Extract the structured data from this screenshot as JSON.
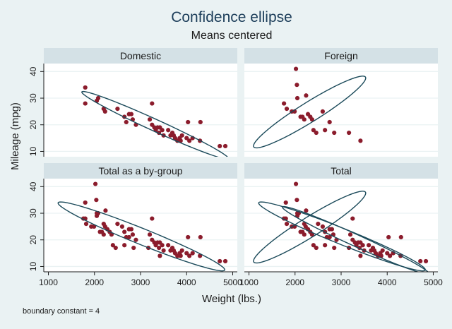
{
  "chart_data": {
    "type": "scatter",
    "title": "Confidence ellipse",
    "subtitle": "Means centered",
    "xlabel": "Weight (lbs.)",
    "ylabel": "Mileage (mpg)",
    "note": "boundary constant = 4",
    "xlim": [
      900,
      5100
    ],
    "ylim": [
      8,
      43
    ],
    "xticks": [
      1000,
      2000,
      3000,
      4000,
      5000
    ],
    "xtick_labels": [
      "1000",
      "2000",
      "3000",
      "4000",
      "5000"
    ],
    "yticks": [
      10,
      20,
      30,
      40
    ],
    "ytick_labels": [
      "10",
      "20",
      "30",
      "40"
    ],
    "grid": true,
    "colors": {
      "background": "#eaf2f3",
      "panel": "#ffffff",
      "strip": "#d4e1e6",
      "grid": "#eaf2f3",
      "marker": "#8b1c2c",
      "ellipse": "#1b4a5a",
      "text": "#1b1b1b",
      "title": "#1d3e5a"
    },
    "panels": [
      {
        "name": "Domestic",
        "ellipses": [
          {
            "cx": 3318,
            "cy": 19.8,
            "rx": 1750,
            "ry": 2.2,
            "angle_deg": 24.5
          }
        ],
        "points": [
          [
            1800,
            34
          ],
          [
            1800,
            28
          ],
          [
            2050,
            29
          ],
          [
            2080,
            30
          ],
          [
            2200,
            26
          ],
          [
            2230,
            25
          ],
          [
            2500,
            26
          ],
          [
            2650,
            23
          ],
          [
            2690,
            21
          ],
          [
            2750,
            24
          ],
          [
            2800,
            24
          ],
          [
            2830,
            22
          ],
          [
            2900,
            20
          ],
          [
            3200,
            22
          ],
          [
            3250,
            28
          ],
          [
            3250,
            20
          ],
          [
            3300,
            19
          ],
          [
            3330,
            18
          ],
          [
            3370,
            19
          ],
          [
            3400,
            17
          ],
          [
            3420,
            19
          ],
          [
            3470,
            18
          ],
          [
            3500,
            16
          ],
          [
            3600,
            18
          ],
          [
            3650,
            16
          ],
          [
            3690,
            17
          ],
          [
            3720,
            16
          ],
          [
            3750,
            15
          ],
          [
            3800,
            14
          ],
          [
            3850,
            15
          ],
          [
            3870,
            14
          ],
          [
            3900,
            16
          ],
          [
            4000,
            15
          ],
          [
            4030,
            21
          ],
          [
            4060,
            14
          ],
          [
            4130,
            15
          ],
          [
            4290,
            14
          ],
          [
            4300,
            21
          ],
          [
            4720,
            12
          ],
          [
            4840,
            12
          ]
        ]
      },
      {
        "name": "Foreign",
        "ellipses": [
          {
            "cx": 2316,
            "cy": 24.8,
            "rx": 1430,
            "ry": 3.7,
            "angle_deg": -32
          }
        ],
        "points": [
          [
            1760,
            28
          ],
          [
            1820,
            26
          ],
          [
            1930,
            25
          ],
          [
            1990,
            25
          ],
          [
            2020,
            41
          ],
          [
            2040,
            35
          ],
          [
            2050,
            30
          ],
          [
            2120,
            23
          ],
          [
            2160,
            23
          ],
          [
            2200,
            22
          ],
          [
            2240,
            31
          ],
          [
            2280,
            24
          ],
          [
            2330,
            23
          ],
          [
            2370,
            22
          ],
          [
            2400,
            18
          ],
          [
            2460,
            17
          ],
          [
            2600,
            25
          ],
          [
            2650,
            18
          ],
          [
            2750,
            21
          ],
          [
            2850,
            17
          ],
          [
            3170,
            17
          ],
          [
            3420,
            14
          ]
        ]
      },
      {
        "name": "Total as a by-group",
        "ellipses": [
          {
            "cx": 3019,
            "cy": 21.3,
            "rx": 1950,
            "ry": 3.0,
            "angle_deg": 22
          }
        ],
        "points": [
          [
            1800,
            34
          ],
          [
            1800,
            28
          ],
          [
            1760,
            28
          ],
          [
            1820,
            26
          ],
          [
            1930,
            25
          ],
          [
            1990,
            25
          ],
          [
            2020,
            41
          ],
          [
            2040,
            35
          ],
          [
            2050,
            30
          ],
          [
            2050,
            29
          ],
          [
            2080,
            30
          ],
          [
            2120,
            23
          ],
          [
            2160,
            23
          ],
          [
            2200,
            22
          ],
          [
            2200,
            26
          ],
          [
            2230,
            25
          ],
          [
            2240,
            31
          ],
          [
            2280,
            24
          ],
          [
            2330,
            23
          ],
          [
            2370,
            22
          ],
          [
            2400,
            18
          ],
          [
            2460,
            17
          ],
          [
            2500,
            26
          ],
          [
            2600,
            25
          ],
          [
            2650,
            18
          ],
          [
            2650,
            23
          ],
          [
            2690,
            21
          ],
          [
            2750,
            24
          ],
          [
            2750,
            21
          ],
          [
            2800,
            24
          ],
          [
            2830,
            22
          ],
          [
            2850,
            17
          ],
          [
            2900,
            20
          ],
          [
            3170,
            17
          ],
          [
            3200,
            22
          ],
          [
            3250,
            28
          ],
          [
            3250,
            20
          ],
          [
            3300,
            19
          ],
          [
            3330,
            18
          ],
          [
            3370,
            19
          ],
          [
            3400,
            17
          ],
          [
            3420,
            14
          ],
          [
            3420,
            19
          ],
          [
            3470,
            18
          ],
          [
            3500,
            16
          ],
          [
            3600,
            18
          ],
          [
            3650,
            16
          ],
          [
            3690,
            17
          ],
          [
            3720,
            16
          ],
          [
            3750,
            15
          ],
          [
            3800,
            14
          ],
          [
            3850,
            15
          ],
          [
            3870,
            14
          ],
          [
            3900,
            16
          ],
          [
            4000,
            15
          ],
          [
            4030,
            21
          ],
          [
            4060,
            14
          ],
          [
            4130,
            15
          ],
          [
            4290,
            14
          ],
          [
            4300,
            21
          ],
          [
            4720,
            12
          ],
          [
            4840,
            12
          ]
        ]
      },
      {
        "name": "Total",
        "ellipses": [
          {
            "cx": 3318,
            "cy": 19.8,
            "rx": 1750,
            "ry": 2.2,
            "angle_deg": 24.5
          },
          {
            "cx": 2316,
            "cy": 24.8,
            "rx": 1430,
            "ry": 3.7,
            "angle_deg": -32
          },
          {
            "cx": 3019,
            "cy": 21.3,
            "rx": 1950,
            "ry": 3.0,
            "angle_deg": 22
          }
        ],
        "points": [
          [
            1800,
            34
          ],
          [
            1800,
            28
          ],
          [
            1760,
            28
          ],
          [
            1820,
            26
          ],
          [
            1930,
            25
          ],
          [
            1990,
            25
          ],
          [
            2020,
            41
          ],
          [
            2040,
            35
          ],
          [
            2050,
            30
          ],
          [
            2050,
            29
          ],
          [
            2080,
            30
          ],
          [
            2120,
            23
          ],
          [
            2160,
            23
          ],
          [
            2200,
            22
          ],
          [
            2200,
            26
          ],
          [
            2230,
            25
          ],
          [
            2240,
            31
          ],
          [
            2280,
            24
          ],
          [
            2330,
            23
          ],
          [
            2370,
            22
          ],
          [
            2400,
            18
          ],
          [
            2460,
            17
          ],
          [
            2500,
            26
          ],
          [
            2600,
            25
          ],
          [
            2650,
            18
          ],
          [
            2650,
            23
          ],
          [
            2690,
            21
          ],
          [
            2750,
            24
          ],
          [
            2750,
            21
          ],
          [
            2800,
            24
          ],
          [
            2830,
            22
          ],
          [
            2850,
            17
          ],
          [
            2900,
            20
          ],
          [
            3170,
            17
          ],
          [
            3200,
            22
          ],
          [
            3250,
            28
          ],
          [
            3250,
            20
          ],
          [
            3300,
            19
          ],
          [
            3330,
            18
          ],
          [
            3370,
            19
          ],
          [
            3400,
            17
          ],
          [
            3420,
            14
          ],
          [
            3420,
            19
          ],
          [
            3470,
            18
          ],
          [
            3500,
            16
          ],
          [
            3600,
            18
          ],
          [
            3650,
            16
          ],
          [
            3690,
            17
          ],
          [
            3720,
            16
          ],
          [
            3750,
            15
          ],
          [
            3800,
            14
          ],
          [
            3850,
            15
          ],
          [
            3870,
            14
          ],
          [
            3900,
            16
          ],
          [
            4000,
            15
          ],
          [
            4030,
            21
          ],
          [
            4060,
            14
          ],
          [
            4130,
            15
          ],
          [
            4290,
            14
          ],
          [
            4300,
            21
          ],
          [
            4720,
            12
          ],
          [
            4840,
            12
          ]
        ]
      }
    ]
  }
}
